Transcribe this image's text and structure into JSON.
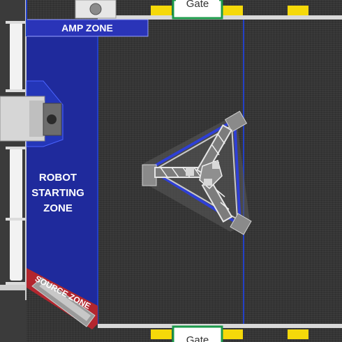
{
  "field": {
    "gate_top_label": "Gate",
    "gate_bottom_label": "Gate",
    "amp_zone_label": "AMP ZONE",
    "robot_zone_label": "ROBOT\nSTARTING\nZONE",
    "source_zone_label": "SOURCE ZONE"
  },
  "colors": {
    "carpet": "#353535",
    "alliance_blue": "#1f2a9c",
    "amp_blue": "#2a34b8",
    "line_blue": "#2340c8",
    "source_red": "#b3262e",
    "rail_white": "#f2f2f2",
    "wall_gray": "#b8b8b8",
    "bumper_yellow": "#f5d90a",
    "gate_green": "#1b9a4a"
  }
}
